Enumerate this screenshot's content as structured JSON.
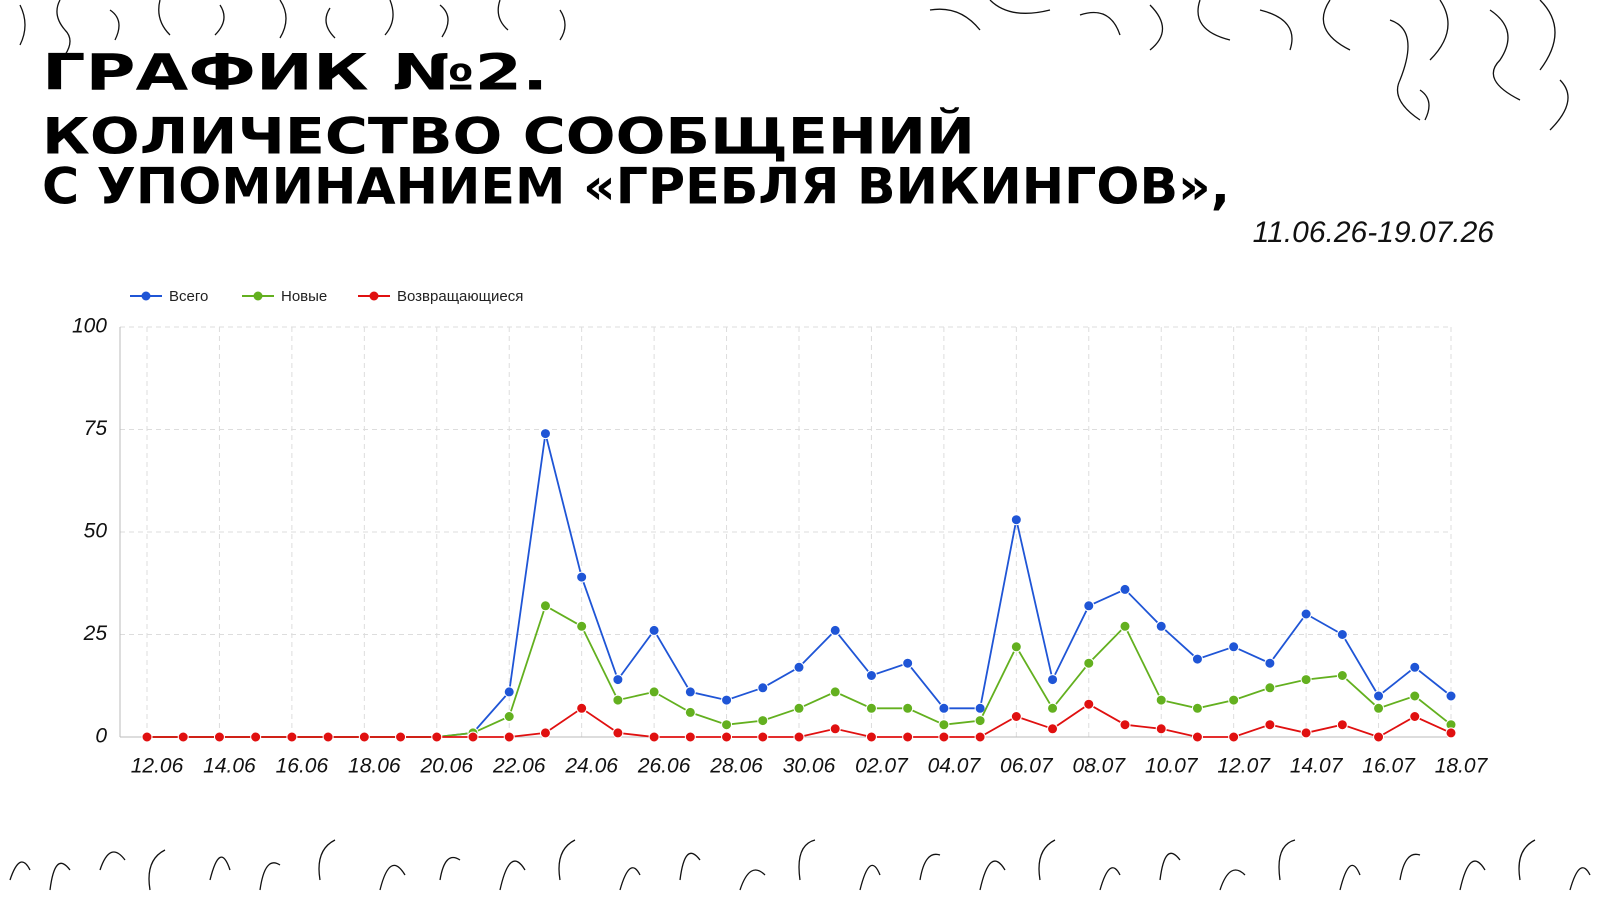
{
  "chart_data": {
    "type": "line",
    "title": "ГРАФИК №2.",
    "subtitle_lines": [
      "КОЛИЧЕСТВО СООБЩЕНИЙ",
      "С УПОМИНАНИЕМ «ГРЕБЛЯ ВИКИНГОВ»,"
    ],
    "date_range": "11.06.26-19.07.26",
    "categories": [
      "12.06",
      null,
      "14.06",
      null,
      "16.06",
      null,
      "18.06",
      null,
      "20.06",
      null,
      "22.06",
      null,
      "24.06",
      null,
      "26.06",
      null,
      "28.06",
      null,
      "30.06",
      null,
      "02.07",
      null,
      "04.07",
      null,
      "06.07",
      null,
      "08.07",
      null,
      "10.07",
      null,
      "12.07",
      null,
      "14.07",
      null,
      "16.07",
      null,
      "18.07"
    ],
    "series": [
      {
        "name": "Всего",
        "color": "#1f55d6",
        "values": [
          0,
          0,
          0,
          0,
          0,
          0,
          0,
          0,
          0,
          1,
          11,
          74,
          39,
          14,
          26,
          11,
          9,
          12,
          17,
          26,
          15,
          18,
          7,
          7,
          53,
          14,
          32,
          36,
          27,
          19,
          22,
          18,
          30,
          25,
          10,
          17,
          10
        ]
      },
      {
        "name": "Новые",
        "color": "#63b01f",
        "values": [
          0,
          0,
          0,
          0,
          0,
          0,
          0,
          0,
          0,
          1,
          5,
          32,
          27,
          9,
          11,
          6,
          3,
          4,
          7,
          11,
          7,
          7,
          3,
          4,
          22,
          7,
          18,
          27,
          9,
          7,
          9,
          12,
          14,
          15,
          7,
          10,
          3
        ]
      },
      {
        "name": "Возвращающиеся",
        "color": "#e01010",
        "values": [
          0,
          0,
          0,
          0,
          0,
          0,
          0,
          0,
          0,
          0,
          0,
          1,
          7,
          1,
          0,
          0,
          0,
          0,
          0,
          2,
          0,
          0,
          0,
          0,
          5,
          2,
          8,
          3,
          2,
          0,
          0,
          3,
          1,
          3,
          0,
          5,
          1
        ]
      }
    ],
    "ylim": [
      0,
      100
    ],
    "yticks": [
      0,
      25,
      50,
      75,
      100
    ],
    "grid": true
  }
}
